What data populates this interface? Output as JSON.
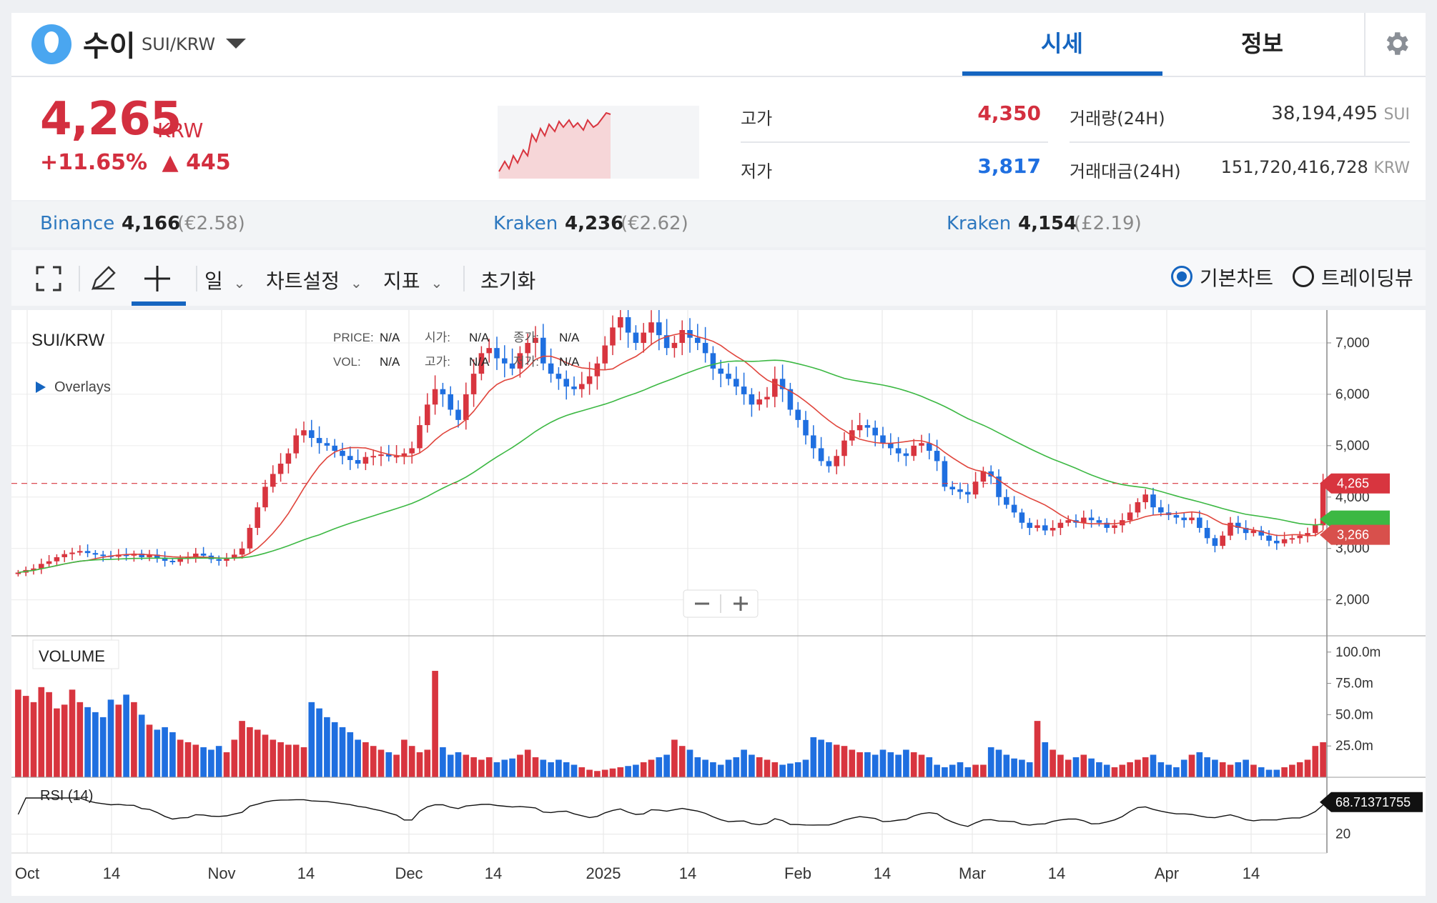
{
  "header": {
    "coin_name": "수이",
    "pair": "SUI/KRW",
    "tab_active": "시세",
    "tab_info": "정보"
  },
  "price": {
    "current": "4,265",
    "currency": "KRW",
    "change_pct": "+11.65%",
    "change_abs": "▲ 445",
    "high_label": "고가",
    "high_value": "4,350",
    "low_label": "저가",
    "low_value": "3,817",
    "volume_label": "거래량(24H)",
    "volume_value": "38,194,495",
    "volume_unit": "SUI",
    "amount_label": "거래대금(24H)",
    "amount_value": "151,720,416,728",
    "amount_unit": "KRW"
  },
  "exchanges": [
    {
      "name": "Binance",
      "price": "4,166",
      "sub": "(€2.58)"
    },
    {
      "name": "Kraken",
      "price": "4,236",
      "sub": "(€2.62)"
    },
    {
      "name": "Kraken",
      "price": "4,154",
      "sub": "(£2.19)"
    }
  ],
  "toolbar": {
    "interval": "일",
    "chart_settings": "차트설정",
    "indicators": "지표",
    "reset": "초기화",
    "basic_chart": "기본차트",
    "tradingview": "트레이딩뷰"
  },
  "colors": {
    "up": "#d8353f",
    "down": "#1f6fe0",
    "ma_short": "#e0453c",
    "ma_long": "#3cb843",
    "accent": "#1565c0"
  },
  "chart_data": {
    "type": "candlestick",
    "symbol": "SUI/KRW",
    "overlays_label": "Overlays",
    "legend": {
      "price_label": "PRICE:",
      "price_value": "N/A",
      "vol_label": "VOL:",
      "vol_value": "N/A",
      "open_label": "시가:",
      "open_value": "N/A",
      "high_label": "고가:",
      "high_value": "N/A",
      "close_label": "종가:",
      "close_value": "N/A",
      "low_label": "저가:",
      "low_value": "N/A"
    },
    "y_ticks": [
      "7,000",
      "6,000",
      "5,000",
      "4,000",
      "3,000",
      "2,000"
    ],
    "y_range": [
      1300,
      7500
    ],
    "x_ticks": [
      "Oct",
      "14",
      "Nov",
      "14",
      "Dec",
      "14",
      "2025",
      "14",
      "Feb",
      "14",
      "Mar",
      "14",
      "Apr",
      "14"
    ],
    "last_price_label": "4,265",
    "last_price": 4265,
    "ma_label": "3,266",
    "ma_value": 3266,
    "closes": [
      2530,
      2580,
      2610,
      2700,
      2750,
      2830,
      2890,
      2920,
      2950,
      2910,
      2880,
      2860,
      2840,
      2880,
      2860,
      2900,
      2830,
      2880,
      2820,
      2760,
      2740,
      2800,
      2840,
      2900,
      2860,
      2790,
      2760,
      2820,
      2880,
      3000,
      3400,
      3800,
      4200,
      4450,
      4650,
      4850,
      5200,
      5300,
      5150,
      5050,
      5000,
      4900,
      4800,
      4720,
      4650,
      4780,
      4800,
      4830,
      4790,
      4800,
      4850,
      4950,
      5400,
      5800,
      6100,
      6000,
      5700,
      5500,
      6000,
      6400,
      6800,
      6900,
      6700,
      6600,
      6500,
      6800,
      7000,
      7100,
      6600,
      6400,
      6300,
      6150,
      6100,
      6200,
      6350,
      6600,
      6950,
      7300,
      7500,
      7200,
      7000,
      7200,
      7400,
      7150,
      6900,
      7000,
      7250,
      7100,
      7000,
      6800,
      6500,
      6400,
      6300,
      6150,
      6000,
      5800,
      5900,
      5950,
      6300,
      6100,
      5700,
      5500,
      5200,
      4950,
      4700,
      4600,
      4800,
      5100,
      5300,
      5400,
      5350,
      5200,
      5050,
      4950,
      4850,
      4800,
      5000,
      5050,
      4900,
      4700,
      4200,
      4150,
      4100,
      4050,
      4300,
      4500,
      4400,
      4000,
      3850,
      3700,
      3500,
      3400,
      3450,
      3350,
      3400,
      3500,
      3550,
      3500,
      3600,
      3550,
      3500,
      3400,
      3450,
      3550,
      3700,
      3900,
      4050,
      3800,
      3700,
      3650,
      3600,
      3550,
      3600,
      3400,
      3200,
      3050,
      3250,
      3500,
      3400,
      3300,
      3350,
      3250,
      3150,
      3100,
      3180,
      3200,
      3250,
      3300,
      3450,
      4265
    ],
    "volume_ticks": [
      "100.0m",
      "75.0m",
      "50.0m",
      "25.0m"
    ],
    "volume_max": 105,
    "volumes": [
      70,
      65,
      60,
      72,
      68,
      55,
      58,
      70,
      60,
      56,
      52,
      48,
      62,
      58,
      66,
      60,
      50,
      42,
      38,
      40,
      36,
      30,
      28,
      26,
      24,
      22,
      25,
      20,
      30,
      45,
      40,
      38,
      34,
      30,
      28,
      26,
      26,
      24,
      60,
      55,
      48,
      44,
      40,
      36,
      30,
      28,
      25,
      22,
      20,
      18,
      30,
      25,
      20,
      22,
      85,
      24,
      18,
      20,
      18,
      16,
      14,
      16,
      12,
      14,
      15,
      18,
      22,
      16,
      14,
      12,
      14,
      12,
      10,
      8,
      6,
      5,
      6,
      7,
      8,
      9,
      10,
      12,
      14,
      16,
      18,
      30,
      25,
      22,
      16,
      14,
      12,
      10,
      14,
      16,
      22,
      18,
      16,
      14,
      12,
      10,
      11,
      12,
      14,
      32,
      30,
      28,
      26,
      25,
      22,
      20,
      20,
      18,
      22,
      20,
      18,
      22,
      20,
      18,
      16,
      10,
      8,
      10,
      12,
      8,
      10,
      10,
      24,
      22,
      18,
      15,
      14,
      12,
      45,
      28,
      22,
      18,
      14,
      16,
      18,
      15,
      12,
      10,
      8,
      10,
      12,
      14,
      16,
      18,
      12,
      10,
      8,
      14,
      18,
      20,
      16,
      14,
      12,
      10,
      12,
      14,
      10,
      8,
      6,
      6,
      8,
      10,
      12,
      14,
      25,
      28
    ],
    "rsi_label": "RSI (14)",
    "rsi_tick": "20",
    "rsi_value_label": "68.71371755",
    "rsi_value": 68.71
  }
}
